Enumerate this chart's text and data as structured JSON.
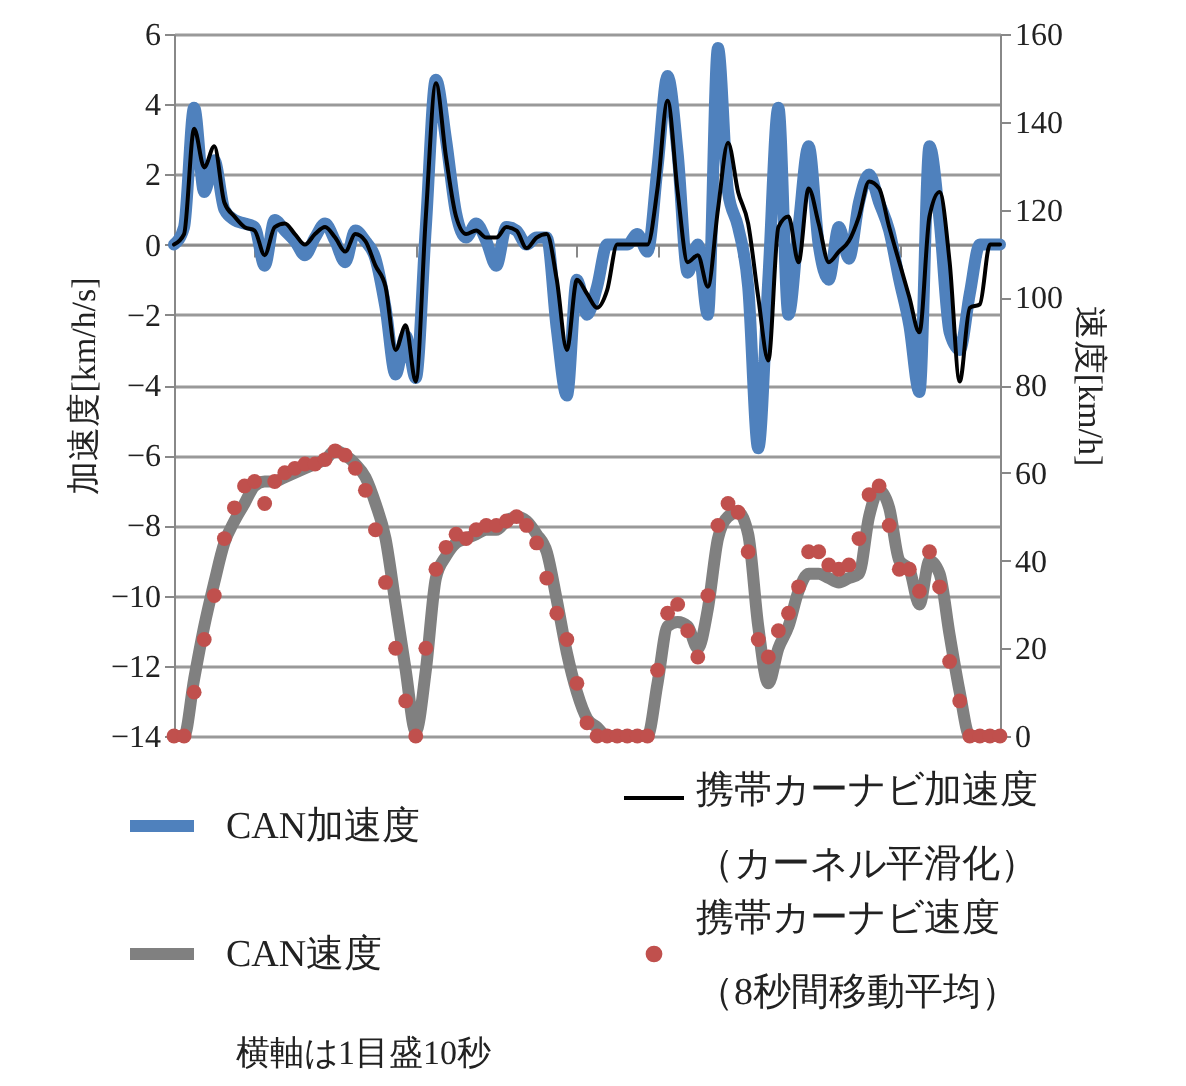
{
  "chart_data": {
    "type": "line",
    "categories": [
      null,
      null,
      null,
      null,
      null,
      null,
      null,
      null,
      null,
      null,
      null,
      null,
      null,
      null,
      null,
      null,
      null,
      null,
      null,
      null,
      null,
      null,
      null,
      null,
      null,
      null,
      null,
      null,
      null,
      null,
      null,
      null,
      null,
      null,
      null,
      null,
      null,
      null,
      null,
      null,
      null,
      null,
      null,
      null,
      null,
      null,
      null,
      null,
      null,
      null,
      null,
      null,
      null,
      null,
      null,
      null,
      null,
      null,
      null,
      null,
      null,
      null,
      null,
      null,
      null,
      null,
      null,
      null,
      null,
      null,
      null,
      null,
      null,
      null,
      null,
      null,
      null,
      null,
      null,
      null,
      null,
      null,
      null
    ],
    "series": [
      {
        "name": "CAN加速度",
        "color": "#4f81bd",
        "values": [
          0,
          0.5,
          3.9,
          1.5,
          2.4,
          1.0,
          0.7,
          0.6,
          0.5,
          -0.6,
          0.7,
          0.4,
          0.1,
          -0.3,
          0.2,
          0.6,
          0.1,
          -0.5,
          0.4,
          0.1,
          -0.4,
          -1.8,
          -3.7,
          -2.6,
          -3.8,
          0.5,
          4.7,
          3.0,
          0.9,
          0.2,
          0.6,
          0.1,
          -0.6,
          0.5,
          0.4,
          0,
          0.2,
          0.2,
          -2.4,
          -4.3,
          -1.0,
          -2.0,
          -1.2,
          0,
          0,
          0,
          0.3,
          -0.2,
          2.2,
          4.8,
          2.6,
          -0.8,
          0,
          -2.0,
          5.6,
          1.5,
          0.5,
          -1.2,
          -5.8,
          -1.0,
          3.9,
          -2.0,
          0.5,
          2.8,
          0,
          -1.0,
          0.5,
          -0.4,
          1.2,
          2.0,
          1.2,
          0.4,
          -1.0,
          -2.3,
          -4.2,
          2.8,
          0.7,
          -2.5,
          -3.0,
          -1.4,
          0,
          0,
          0
        ]
      },
      {
        "name": "携帯カーナビ加速度（カーネル平滑化）",
        "color": "#000000",
        "values": [
          0,
          0.3,
          3.3,
          2.2,
          2.8,
          1.2,
          0.8,
          0.5,
          0.4,
          -0.3,
          0.5,
          0.6,
          0.3,
          0.0,
          0.3,
          0.5,
          0.2,
          -0.2,
          0.3,
          0.1,
          -0.6,
          -1.2,
          -3.0,
          -2.3,
          -3.9,
          0.8,
          4.6,
          2.5,
          0.8,
          0.3,
          0.4,
          0.2,
          0.2,
          0.5,
          0.4,
          -0.1,
          0.2,
          0.3,
          -1.0,
          -3.0,
          -1.0,
          -1.4,
          -1.8,
          -1.3,
          0,
          0,
          0,
          0,
          1.6,
          4.1,
          1.5,
          -0.5,
          -0.3,
          -1.2,
          1.0,
          2.9,
          1.5,
          0.6,
          -1.5,
          -3.3,
          0.5,
          0.8,
          -0.5,
          1.6,
          0.6,
          -0.5,
          -0.2,
          0.1,
          0.8,
          1.8,
          1.6,
          0.5,
          -0.5,
          -1.5,
          -2.5,
          0.8,
          1.5,
          -0.5,
          -3.9,
          -1.8,
          -1.7,
          0,
          0
        ]
      },
      {
        "name": "CAN速度",
        "axis": "y2",
        "color": "#808080",
        "values": [
          0,
          0,
          13,
          25,
          35,
          44,
          49,
          53,
          57,
          58,
          58,
          59,
          60,
          61,
          62,
          63,
          65,
          64,
          62,
          59,
          53,
          45,
          30,
          15,
          1,
          15,
          36,
          41,
          44,
          45,
          46,
          47,
          47,
          49,
          50,
          49,
          46,
          42,
          31,
          19,
          10,
          4,
          2,
          0,
          0,
          0,
          0,
          0,
          12,
          25,
          26,
          25,
          20,
          29,
          45,
          50,
          51,
          46,
          25,
          12,
          20,
          25,
          33,
          37,
          37,
          36,
          35,
          36,
          37,
          50,
          56,
          52,
          40,
          38,
          30,
          40,
          37,
          23,
          10,
          0,
          0,
          0,
          0
        ]
      },
      {
        "name": "携帯カーナビ速度（8秒間移動平均）",
        "type": "scatter",
        "axis": "y2",
        "marker": "circle",
        "color": "#c0504d",
        "values": [
          0,
          0,
          10,
          22,
          32,
          45,
          52,
          57,
          58,
          53,
          58,
          60,
          61,
          62,
          62,
          63,
          65,
          64,
          61,
          56,
          47,
          35,
          20,
          8,
          0,
          20,
          38,
          43,
          46,
          45,
          47,
          48,
          48,
          49,
          50,
          48,
          44,
          36,
          28,
          22,
          12,
          3,
          0,
          0,
          0,
          0,
          0,
          0,
          15,
          28,
          30,
          24,
          18,
          32,
          48,
          53,
          51,
          42,
          22,
          18,
          24,
          28,
          34,
          42,
          42,
          39,
          38,
          39,
          45,
          55,
          57,
          48,
          38,
          38,
          33,
          42,
          34,
          17,
          8,
          0,
          0,
          0,
          0
        ]
      }
    ],
    "ylabel": "加速度[km/h/s]",
    "y2label": "速度[km/h]",
    "ylim": [
      -14,
      6
    ],
    "yticks": [
      -14,
      -12,
      -10,
      -8,
      -6,
      -4,
      -2,
      0,
      2,
      4,
      6
    ],
    "y2lim": [
      0,
      160
    ],
    "y2ticks": [
      0,
      20,
      40,
      60,
      80,
      100,
      120,
      140,
      160
    ],
    "grid": "y",
    "legend": "bottom",
    "tick_labels": "y",
    "annotations": [
      "横軸は1目盛10秒"
    ]
  }
}
